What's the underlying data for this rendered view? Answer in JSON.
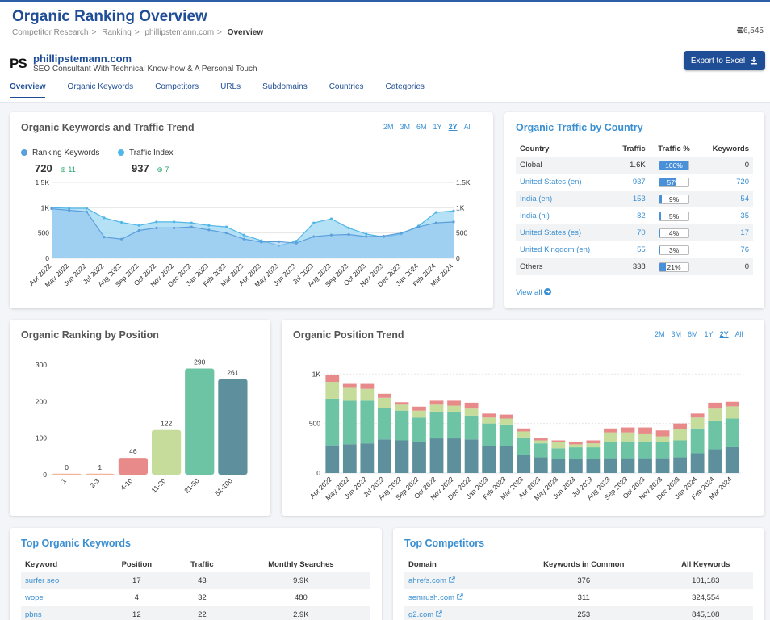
{
  "page": {
    "title": "Organic Ranking Overview",
    "breadcrumb": [
      "Competitor Research",
      "Ranking",
      "phillipstemann.com",
      "Overview"
    ],
    "credits": "6,545",
    "logo": "PS",
    "site_name": "phillipstemann.com",
    "site_desc": "SEO Consultant With Technical Know-how & A Personal Touch",
    "export_label": "Export to Excel",
    "tabs": [
      "Overview",
      "Organic Keywords",
      "Competitors",
      "URLs",
      "Subdomains",
      "Countries",
      "Categories"
    ],
    "active_tab": 0,
    "colors": {
      "brand": "#1f4e96",
      "accent": "#3a8fd1"
    }
  },
  "trend": {
    "title": "Organic Keywords and Traffic Trend",
    "ranges": [
      "2M",
      "3M",
      "6M",
      "1Y",
      "2Y",
      "All"
    ],
    "selected_range": "2Y",
    "legend": [
      {
        "name": "Ranking Keywords",
        "value": "720",
        "delta": "11",
        "color": "#5b9fdc"
      },
      {
        "name": "Traffic Index",
        "value": "937",
        "delta": "7",
        "color": "#4fb6e8"
      }
    ]
  },
  "country": {
    "title": "Organic Traffic by Country",
    "headers": [
      "Country",
      "Traffic",
      "Traffic %",
      "Keywords"
    ],
    "rows": [
      {
        "country": "Global",
        "traffic": "1.6K",
        "pct": "100%",
        "pct_value": 100,
        "keywords": "0",
        "link": false
      },
      {
        "country": "United States (en)",
        "traffic": "937",
        "pct": "57%",
        "pct_value": 57,
        "keywords": "720",
        "link": true
      },
      {
        "country": "India (en)",
        "traffic": "153",
        "pct": "9%",
        "pct_value": 9,
        "keywords": "54",
        "link": true
      },
      {
        "country": "India (hi)",
        "traffic": "82",
        "pct": "5%",
        "pct_value": 5,
        "keywords": "35",
        "link": true
      },
      {
        "country": "United States (es)",
        "traffic": "70",
        "pct": "4%",
        "pct_value": 4,
        "keywords": "17",
        "link": true
      },
      {
        "country": "United Kingdom (en)",
        "traffic": "55",
        "pct": "3%",
        "pct_value": 3,
        "keywords": "76",
        "link": true
      },
      {
        "country": "Others",
        "traffic": "338",
        "pct": "21%",
        "pct_value": 21,
        "keywords": "0",
        "link": false
      }
    ],
    "view_all": "View all"
  },
  "position": {
    "title": "Organic Ranking by Position"
  },
  "ptrend": {
    "title": "Organic Position Trend",
    "ranges": [
      "2M",
      "3M",
      "6M",
      "1Y",
      "2Y",
      "All"
    ],
    "selected_range": "2Y"
  },
  "keywords": {
    "title": "Top Organic Keywords",
    "headers": [
      "Keyword",
      "Position",
      "Traffic",
      "Monthly Searches"
    ],
    "rows": [
      {
        "keyword": "surfer seo",
        "position": "17",
        "traffic": "43",
        "searches": "9.9K"
      },
      {
        "keyword": "wope",
        "position": "4",
        "traffic": "32",
        "searches": "480"
      },
      {
        "keyword": "pbns",
        "position": "12",
        "traffic": "22",
        "searches": "2.9K"
      }
    ]
  },
  "competitors": {
    "title": "Top Competitors",
    "headers": [
      "Domain",
      "Keywords in Common",
      "All Keywords"
    ],
    "rows": [
      {
        "domain": "ahrefs.com",
        "common": "376",
        "all": "101,183"
      },
      {
        "domain": "semrush.com",
        "common": "311",
        "all": "324,554"
      },
      {
        "domain": "g2.com",
        "common": "253",
        "all": "845,108"
      }
    ]
  },
  "chart_data": [
    {
      "type": "area",
      "title": "Organic Keywords and Traffic Trend",
      "x": [
        "Apr 2022",
        "May 2022",
        "Jun 2022",
        "Jul 2022",
        "Aug 2022",
        "Sep 2022",
        "Oct 2022",
        "Nov 2022",
        "Dec 2022",
        "Jan 2023",
        "Feb 2023",
        "Mar 2023",
        "Apr 2023",
        "May 2023",
        "Jun 2023",
        "Jul 2023",
        "Aug 2023",
        "Sep 2023",
        "Oct 2023",
        "Nov 2023",
        "Dec 2023",
        "Jan 2024",
        "Feb 2024",
        "Mar 2024"
      ],
      "yticks": [
        "0",
        "500",
        "1K",
        "1.5K"
      ],
      "ylim": [
        0,
        1500
      ],
      "series": [
        {
          "name": "Ranking Keywords",
          "values": [
            980,
            950,
            920,
            420,
            380,
            550,
            600,
            600,
            620,
            560,
            500,
            380,
            320,
            330,
            300,
            430,
            460,
            470,
            430,
            440,
            500,
            620,
            700,
            720
          ],
          "color": "#5b9fdc"
        },
        {
          "name": "Traffic Index",
          "values": [
            1000,
            990,
            990,
            800,
            710,
            650,
            720,
            720,
            700,
            650,
            620,
            460,
            350,
            250,
            340,
            700,
            780,
            600,
            480,
            420,
            480,
            640,
            910,
            937
          ],
          "color": "#a8dcf4"
        }
      ]
    },
    {
      "type": "bar",
      "title": "Organic Ranking by Position",
      "categories": [
        "1",
        "2-3",
        "4-10",
        "11-20",
        "21-50",
        "51-100"
      ],
      "values": [
        0,
        1,
        46,
        122,
        290,
        261
      ],
      "colors": [
        "#f5b49a",
        "#f5b49a",
        "#e88a8a",
        "#c5dc9a",
        "#6cc4a4",
        "#5e8f9c"
      ],
      "yticks": [
        0,
        100,
        200,
        300
      ],
      "ylim": [
        0,
        300
      ]
    },
    {
      "type": "bar",
      "stacked": true,
      "title": "Organic Position Trend",
      "categories": [
        "Apr 2022",
        "May 2022",
        "Jun 2022",
        "Jul 2022",
        "Aug 2022",
        "Sep 2022",
        "Oct 2022",
        "Nov 2022",
        "Dec 2022",
        "Jan 2023",
        "Feb 2023",
        "Mar 2023",
        "Apr 2023",
        "May 2023",
        "Jun 2023",
        "Jul 2023",
        "Aug 2023",
        "Sep 2023",
        "Oct 2023",
        "Nov 2023",
        "Dec 2023",
        "Jan 2024",
        "Feb 2024",
        "Mar 2024"
      ],
      "yticks": [
        "0",
        "500",
        "1K"
      ],
      "ylim": [
        0,
        1100
      ],
      "series": [
        {
          "name": "51-100",
          "values": [
            280,
            290,
            300,
            340,
            330,
            310,
            350,
            350,
            340,
            270,
            270,
            180,
            160,
            140,
            140,
            140,
            150,
            150,
            150,
            150,
            160,
            200,
            240,
            261
          ],
          "color": "#5e8f9c"
        },
        {
          "name": "21-50",
          "values": [
            470,
            440,
            430,
            320,
            300,
            250,
            270,
            270,
            240,
            230,
            220,
            180,
            140,
            110,
            120,
            120,
            160,
            170,
            170,
            160,
            170,
            250,
            290,
            290
          ],
          "color": "#6cc4a4"
        },
        {
          "name": "11-20",
          "values": [
            170,
            130,
            120,
            100,
            60,
            70,
            70,
            60,
            70,
            60,
            60,
            60,
            30,
            60,
            30,
            40,
            100,
            90,
            80,
            60,
            110,
            110,
            120,
            122
          ],
          "color": "#c5dc9a"
        },
        {
          "name": "4-10",
          "values": [
            70,
            40,
            50,
            40,
            25,
            40,
            40,
            50,
            60,
            40,
            40,
            30,
            20,
            20,
            20,
            30,
            40,
            50,
            60,
            60,
            60,
            40,
            60,
            46
          ],
          "color": "#e88a8a"
        }
      ]
    }
  ]
}
